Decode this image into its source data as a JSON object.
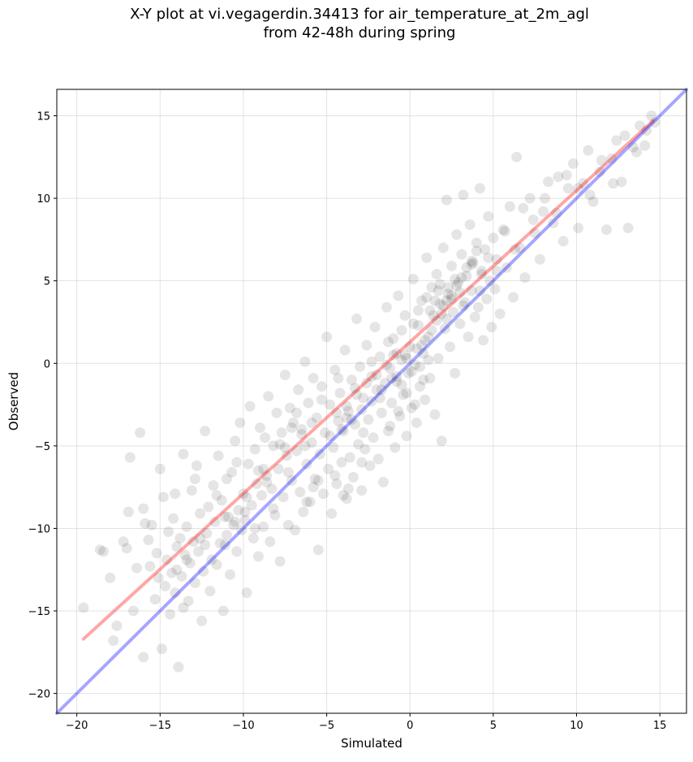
{
  "chart_data": {
    "type": "scatter",
    "title_lines": [
      "X-Y plot at vi.vegagerdin.34413 for air_temperature_at_2m_agl",
      "from 42-48h during spring"
    ],
    "xlabel": "Simulated",
    "ylabel": "Observed",
    "xlim": [
      -21.2,
      16.6
    ],
    "ylim": [
      -21.2,
      16.6
    ],
    "xticks": [
      -20,
      -15,
      -10,
      -5,
      0,
      5,
      10,
      15
    ],
    "yticks": [
      -20,
      -15,
      -10,
      -5,
      0,
      5,
      10,
      15
    ],
    "xtick_labels": [
      "−20",
      "−15",
      "−10",
      "−5",
      "0",
      "5",
      "10",
      "15"
    ],
    "ytick_labels": [
      "−20",
      "−15",
      "−10",
      "−5",
      "0",
      "5",
      "10",
      "15"
    ],
    "grid": true,
    "point_color": "#000000",
    "point_opacity": 0.1,
    "lines": [
      {
        "kind": "regression",
        "color": "#ff0000",
        "opacity": 0.35,
        "x": [
          -19.6,
          14.6
        ],
        "y": [
          -16.7,
          14.7
        ]
      },
      {
        "kind": "one-to-one",
        "color": "#0000ff",
        "opacity": 0.35,
        "x": [
          -21.2,
          16.6
        ],
        "y": [
          -21.2,
          16.6
        ]
      }
    ],
    "points": [
      [
        -19.6,
        -14.8
      ],
      [
        -18.6,
        -11.3
      ],
      [
        -18.4,
        -11.4
      ],
      [
        -17.8,
        -16.8
      ],
      [
        -17.6,
        -15.9
      ],
      [
        -17.0,
        -11.2
      ],
      [
        -16.9,
        -9.0
      ],
      [
        -16.8,
        -5.7
      ],
      [
        -16.6,
        -15.0
      ],
      [
        -16.4,
        -12.4
      ],
      [
        -16.2,
        -4.2
      ],
      [
        -16.0,
        -17.8
      ],
      [
        -15.9,
        -9.7
      ],
      [
        -15.7,
        -10.7
      ],
      [
        -15.6,
        -12.3
      ],
      [
        -15.5,
        -9.8
      ],
      [
        -15.3,
        -14.3
      ],
      [
        -15.2,
        -11.5
      ],
      [
        -15.0,
        -6.4
      ],
      [
        -14.9,
        -17.3
      ],
      [
        -14.8,
        -8.1
      ],
      [
        -14.7,
        -13.5
      ],
      [
        -14.6,
        -11.9
      ],
      [
        -14.5,
        -10.2
      ],
      [
        -14.4,
        -15.2
      ],
      [
        -14.3,
        -12.7
      ],
      [
        -14.2,
        -9.4
      ],
      [
        -14.1,
        -13.9
      ],
      [
        -14.0,
        -11.1
      ],
      [
        -13.9,
        -18.4
      ],
      [
        -13.8,
        -10.6
      ],
      [
        -13.7,
        -12.9
      ],
      [
        -13.6,
        -5.5
      ],
      [
        -13.5,
        -11.6
      ],
      [
        -13.4,
        -9.9
      ],
      [
        -13.3,
        -14.4
      ],
      [
        -13.2,
        -12.1
      ],
      [
        -13.1,
        -7.7
      ],
      [
        -13.0,
        -10.8
      ],
      [
        -12.9,
        -13.3
      ],
      [
        -12.8,
        -6.2
      ],
      [
        -12.7,
        -11.4
      ],
      [
        -12.6,
        -9.1
      ],
      [
        -12.5,
        -15.6
      ],
      [
        -12.4,
        -12.6
      ],
      [
        -12.3,
        -4.1
      ],
      [
        -12.2,
        -10.3
      ],
      [
        -12.1,
        -8.7
      ],
      [
        -12.0,
        -13.8
      ],
      [
        -11.9,
        -11.9
      ],
      [
        -11.8,
        -7.4
      ],
      [
        -11.7,
        -9.6
      ],
      [
        -11.6,
        -12.2
      ],
      [
        -11.5,
        -5.6
      ],
      [
        -11.4,
        -10.9
      ],
      [
        -11.3,
        -8.3
      ],
      [
        -11.2,
        -15.0
      ],
      [
        -11.1,
        -11.0
      ],
      [
        -11.0,
        -7.0
      ],
      [
        -10.9,
        -9.3
      ],
      [
        -10.8,
        -12.8
      ],
      [
        -10.7,
        -6.6
      ],
      [
        -10.6,
        -9.8
      ],
      [
        -10.5,
        -4.7
      ],
      [
        -10.4,
        -11.4
      ],
      [
        -10.3,
        -8.9
      ],
      [
        -10.2,
        -3.6
      ],
      [
        -10.1,
        -10.1
      ],
      [
        -10.0,
        -7.9
      ],
      [
        -9.9,
        -9.5
      ],
      [
        -9.8,
        -13.9
      ],
      [
        -9.7,
        -6.1
      ],
      [
        -9.6,
        -2.6
      ],
      [
        -9.5,
        -8.6
      ],
      [
        -9.4,
        -10.6
      ],
      [
        -9.3,
        -5.2
      ],
      [
        -9.2,
        -7.3
      ],
      [
        -9.1,
        -11.7
      ],
      [
        -9.0,
        -3.9
      ],
      [
        -8.9,
        -8.0
      ],
      [
        -8.8,
        -9.9
      ],
      [
        -8.7,
        -4.5
      ],
      [
        -8.6,
        -6.8
      ],
      [
        -8.5,
        -2.0
      ],
      [
        -8.4,
        -10.8
      ],
      [
        -8.3,
        -7.6
      ],
      [
        -8.2,
        -5.0
      ],
      [
        -8.1,
        -9.2
      ],
      [
        -8.0,
        -3.0
      ],
      [
        -7.9,
        -6.4
      ],
      [
        -7.8,
        -12.0
      ],
      [
        -7.7,
        -4.2
      ],
      [
        -7.6,
        -8.1
      ],
      [
        -7.5,
        -0.7
      ],
      [
        -7.4,
        -5.6
      ],
      [
        -7.3,
        -9.8
      ],
      [
        -7.2,
        -2.7
      ],
      [
        -7.1,
        -7.1
      ],
      [
        -7.0,
        -3.6
      ],
      [
        -6.9,
        -10.1
      ],
      [
        -6.8,
        -5.3
      ],
      [
        -6.7,
        -1.6
      ],
      [
        -6.6,
        -7.8
      ],
      [
        -6.5,
        -4.0
      ],
      [
        -6.4,
        -9.0
      ],
      [
        -6.3,
        0.1
      ],
      [
        -6.2,
        -6.1
      ],
      [
        -6.1,
        -2.4
      ],
      [
        -6.0,
        -8.4
      ],
      [
        -5.9,
        -4.8
      ],
      [
        -5.8,
        -0.9
      ],
      [
        -5.7,
        -7.0
      ],
      [
        -5.6,
        -3.3
      ],
      [
        -5.5,
        -11.3
      ],
      [
        -5.4,
        -5.5
      ],
      [
        -5.3,
        -1.4
      ],
      [
        -5.2,
        -7.9
      ],
      [
        -5.1,
        -4.2
      ],
      [
        -5.0,
        1.6
      ],
      [
        -4.9,
        -6.4
      ],
      [
        -4.8,
        -2.5
      ],
      [
        -4.7,
        -9.1
      ],
      [
        -4.6,
        -5.1
      ],
      [
        -4.5,
        -0.4
      ],
      [
        -4.4,
        -7.3
      ],
      [
        -4.3,
        -3.5
      ],
      [
        -4.2,
        -1.8
      ],
      [
        -4.1,
        -6.0
      ],
      [
        -4.0,
        -4.1
      ],
      [
        -3.9,
        0.8
      ],
      [
        -3.8,
        -8.2
      ],
      [
        -3.7,
        -2.9
      ],
      [
        -3.6,
        -5.7
      ],
      [
        -3.5,
        -1.0
      ],
      [
        -3.4,
        -6.9
      ],
      [
        -3.3,
        -3.7
      ],
      [
        -3.2,
        2.7
      ],
      [
        -3.1,
        -4.9
      ],
      [
        -3.0,
        -0.2
      ],
      [
        -2.9,
        -7.7
      ],
      [
        -2.8,
        -2.1
      ],
      [
        -2.7,
        -5.2
      ],
      [
        -2.6,
        1.1
      ],
      [
        -2.5,
        -3.4
      ],
      [
        -2.4,
        -6.2
      ],
      [
        -2.3,
        -0.8
      ],
      [
        -2.2,
        -4.5
      ],
      [
        -2.1,
        2.2
      ],
      [
        -2.0,
        -1.6
      ],
      [
        -1.9,
        -5.8
      ],
      [
        -1.8,
        0.4
      ],
      [
        -1.7,
        -3.0
      ],
      [
        -1.6,
        -7.2
      ],
      [
        -1.5,
        -1.2
      ],
      [
        -1.4,
        3.4
      ],
      [
        -1.3,
        -4.1
      ],
      [
        -1.2,
        -0.3
      ],
      [
        -1.1,
        -2.4
      ],
      [
        -1.0,
        1.5
      ],
      [
        -0.9,
        -5.1
      ],
      [
        -0.8,
        -1.1
      ],
      [
        -0.7,
        4.1
      ],
      [
        -0.6,
        -3.2
      ],
      [
        -0.5,
        0.2
      ],
      [
        -0.4,
        -1.9
      ],
      [
        -0.3,
        2.9
      ],
      [
        -0.2,
        -4.4
      ],
      [
        -0.1,
        -0.6
      ],
      [
        0.0,
        1.0
      ],
      [
        0.1,
        -2.7
      ],
      [
        0.2,
        5.1
      ],
      [
        0.3,
        -0.1
      ],
      [
        0.4,
        -3.6
      ],
      [
        0.5,
        2.3
      ],
      [
        0.6,
        -1.4
      ],
      [
        0.7,
        3.8
      ],
      [
        0.8,
        0.6
      ],
      [
        0.9,
        -2.2
      ],
      [
        1.0,
        6.4
      ],
      [
        1.1,
        1.6
      ],
      [
        1.2,
        -0.9
      ],
      [
        1.3,
        4.6
      ],
      [
        1.4,
        2.9
      ],
      [
        1.5,
        -3.1
      ],
      [
        1.6,
        5.4
      ],
      [
        1.7,
        0.3
      ],
      [
        1.8,
        3.6
      ],
      [
        1.9,
        -4.7
      ],
      [
        2.0,
        7.0
      ],
      [
        2.1,
        2.1
      ],
      [
        2.2,
        9.9
      ],
      [
        2.3,
        4.2
      ],
      [
        2.4,
        1.0
      ],
      [
        2.5,
        5.9
      ],
      [
        2.6,
        3.1
      ],
      [
        2.7,
        -0.6
      ],
      [
        2.8,
        7.8
      ],
      [
        2.9,
        4.9
      ],
      [
        3.0,
        2.4
      ],
      [
        3.1,
        6.6
      ],
      [
        3.2,
        10.2
      ],
      [
        3.3,
        3.7
      ],
      [
        3.4,
        5.3
      ],
      [
        3.5,
        1.6
      ],
      [
        3.6,
        8.4
      ],
      [
        3.7,
        4.4
      ],
      [
        3.8,
        6.1
      ],
      [
        3.9,
        2.8
      ],
      [
        4.0,
        7.3
      ],
      [
        4.1,
        3.4
      ],
      [
        4.2,
        10.6
      ],
      [
        4.3,
        5.6
      ],
      [
        4.4,
        1.4
      ],
      [
        4.5,
        6.9
      ],
      [
        4.6,
        3.9
      ],
      [
        4.7,
        8.9
      ],
      [
        4.8,
        5.0
      ],
      [
        4.9,
        2.2
      ],
      [
        5.0,
        7.6
      ],
      [
        5.1,
        4.5
      ],
      [
        5.2,
        6.3
      ],
      [
        5.4,
        3.0
      ],
      [
        5.6,
        8.1
      ],
      [
        5.8,
        5.8
      ],
      [
        6.0,
        9.5
      ],
      [
        6.2,
        4.0
      ],
      [
        6.4,
        12.5
      ],
      [
        6.6,
        7.0
      ],
      [
        6.9,
        5.2
      ],
      [
        7.2,
        10.0
      ],
      [
        7.5,
        7.9
      ],
      [
        7.8,
        6.3
      ],
      [
        8.0,
        9.2
      ],
      [
        8.3,
        11.0
      ],
      [
        8.6,
        8.5
      ],
      [
        8.9,
        11.3
      ],
      [
        9.2,
        7.4
      ],
      [
        9.5,
        10.6
      ],
      [
        9.8,
        12.1
      ],
      [
        10.1,
        8.2
      ],
      [
        10.4,
        10.9
      ],
      [
        10.7,
        12.9
      ],
      [
        11.0,
        9.8
      ],
      [
        11.4,
        11.6
      ],
      [
        11.8,
        8.1
      ],
      [
        12.1,
        12.4
      ],
      [
        12.4,
        13.5
      ],
      [
        12.7,
        11.0
      ],
      [
        13.1,
        8.2
      ],
      [
        13.4,
        13.1
      ],
      [
        13.8,
        14.4
      ],
      [
        14.1,
        13.2
      ],
      [
        14.5,
        15.0
      ],
      [
        14.7,
        14.6
      ],
      [
        -18.0,
        -13.0
      ],
      [
        -17.2,
        -10.8
      ],
      [
        -16.0,
        -8.8
      ],
      [
        -15.1,
        -13.0
      ],
      [
        -14.1,
        -7.9
      ],
      [
        -13.6,
        -14.8
      ],
      [
        -12.9,
        -7.0
      ],
      [
        -12.3,
        -11.0
      ],
      [
        -11.6,
        -8.0
      ],
      [
        -11.0,
        -10.4
      ],
      [
        -10.4,
        -6.0
      ],
      [
        -9.8,
        -8.1
      ],
      [
        -9.3,
        -10.0
      ],
      [
        -8.8,
        -6.4
      ],
      [
        -8.2,
        -8.8
      ],
      [
        -7.8,
        -4.9
      ],
      [
        -7.3,
        -6.6
      ],
      [
        -6.8,
        -3.0
      ],
      [
        -6.3,
        -5.0
      ],
      [
        -5.8,
        -7.5
      ],
      [
        -5.3,
        -2.2
      ],
      [
        -4.8,
        -4.4
      ],
      [
        -4.3,
        -0.9
      ],
      [
        -3.8,
        -3.3
      ],
      [
        -3.3,
        -1.5
      ],
      [
        -2.8,
        -4.2
      ],
      [
        -2.3,
        0.1
      ],
      [
        -1.8,
        -2.1
      ],
      [
        -1.3,
        1.3
      ],
      [
        -0.8,
        -0.8
      ],
      [
        -0.3,
        0.5
      ],
      [
        0.2,
        2.4
      ],
      [
        0.7,
        1.1
      ],
      [
        1.2,
        3.2
      ],
      [
        1.7,
        4.4
      ],
      [
        2.2,
        2.7
      ],
      [
        2.7,
        5.1
      ],
      [
        3.2,
        3.5
      ],
      [
        3.7,
        6.0
      ],
      [
        4.2,
        4.4
      ],
      [
        4.7,
        6.4
      ],
      [
        5.2,
        5.6
      ],
      [
        5.7,
        8.0
      ],
      [
        6.3,
        6.9
      ],
      [
        6.8,
        9.4
      ],
      [
        7.4,
        8.7
      ],
      [
        8.1,
        10.0
      ],
      [
        8.8,
        9.1
      ],
      [
        9.4,
        11.4
      ],
      [
        10.1,
        10.6
      ],
      [
        10.8,
        10.2
      ],
      [
        11.5,
        12.3
      ],
      [
        12.2,
        10.9
      ],
      [
        12.9,
        13.8
      ],
      [
        13.6,
        12.8
      ],
      [
        14.2,
        14.1
      ],
      [
        0.1,
        -0.5
      ],
      [
        -0.2,
        0.3
      ],
      [
        0.4,
        0.9
      ],
      [
        -0.5,
        -1.3
      ],
      [
        0.6,
        -0.2
      ],
      [
        -0.8,
        0.6
      ],
      [
        0.9,
        1.4
      ],
      [
        -1.1,
        -0.9
      ],
      [
        1.3,
        2.0
      ],
      [
        -1.4,
        -0.1
      ],
      [
        1.6,
        2.6
      ],
      [
        -1.7,
        -1.6
      ],
      [
        1.9,
        3.0
      ],
      [
        -2.0,
        -0.7
      ],
      [
        2.2,
        3.8
      ],
      [
        -2.3,
        -2.3
      ],
      [
        2.5,
        4.1
      ],
      [
        -2.6,
        -1.2
      ],
      [
        2.8,
        4.7
      ],
      [
        -2.9,
        -2.8
      ],
      [
        3.1,
        5.2
      ],
      [
        -3.2,
        -1.9
      ],
      [
        3.4,
        5.8
      ],
      [
        -3.5,
        -3.4
      ],
      [
        3.7,
        6.2
      ],
      [
        -3.8,
        -2.6
      ],
      [
        4.0,
        6.8
      ],
      [
        -4.1,
        -4.0
      ],
      [
        4.3,
        5.4
      ],
      [
        -4.4,
        -3.0
      ],
      [
        1.0,
        4.0
      ],
      [
        1.5,
        3.8
      ],
      [
        2.0,
        3.5
      ],
      [
        2.5,
        3.9
      ],
      [
        3.0,
        4.3
      ],
      [
        1.8,
        4.8
      ],
      [
        2.3,
        4.6
      ],
      [
        0.5,
        3.2
      ],
      [
        -0.5,
        2.0
      ],
      [
        -1.0,
        0.5
      ],
      [
        -0.2,
        -1.8
      ],
      [
        0.3,
        -2.5
      ],
      [
        -0.7,
        -2.9
      ],
      [
        0.8,
        -1.0
      ],
      [
        -1.2,
        -3.8
      ],
      [
        1.1,
        0.2
      ],
      [
        -9.9,
        -9.0
      ],
      [
        -10.5,
        -9.6
      ],
      [
        -11.1,
        -9.3
      ],
      [
        -12.6,
        -10.6
      ],
      [
        -13.4,
        -11.9
      ],
      [
        -14.0,
        -12.5
      ],
      [
        -5.9,
        -3.6
      ],
      [
        -6.5,
        -4.3
      ],
      [
        -7.1,
        -3.9
      ],
      [
        -4.5,
        -6.8
      ],
      [
        -3.7,
        -7.6
      ],
      [
        -2.9,
        -6.0
      ],
      [
        -5.5,
        -7.1
      ],
      [
        -6.2,
        -8.4
      ],
      [
        -4.0,
        -8.0
      ],
      [
        -8.6,
        -7.2
      ],
      [
        -9.1,
        -6.5
      ],
      [
        -7.5,
        -5.1
      ]
    ]
  }
}
